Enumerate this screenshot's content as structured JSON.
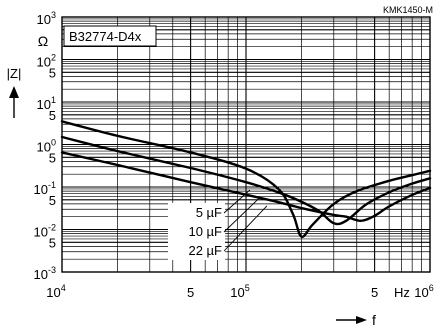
{
  "chart_data": {
    "type": "line",
    "doc_code": "KMK1450-M",
    "box_label": "B32774-D4x",
    "ylabel": "|Z|",
    "yunit": "Ω",
    "xlabel": "f",
    "xunit": "Hz",
    "x_scale": "log",
    "y_scale": "log",
    "xlim": [
      10000,
      1000000
    ],
    "ylim": [
      0.001,
      1000
    ],
    "grid": true,
    "x_ticks": [
      {
        "value": 10000,
        "mantissa": "10",
        "exp": "4"
      },
      {
        "value": 50000,
        "mantissa": "5",
        "exp": ""
      },
      {
        "value": 100000,
        "mantissa": "10",
        "exp": "5"
      },
      {
        "value": 500000,
        "mantissa": "5",
        "exp": ""
      },
      {
        "value": 1000000,
        "mantissa": "10",
        "exp": "6"
      }
    ],
    "y_ticks": [
      {
        "value": 1000,
        "mantissa": "10",
        "exp": "3"
      },
      {
        "value": 100,
        "mantissa": "10",
        "exp": "2"
      },
      {
        "value": 50,
        "mantissa": "5",
        "exp": ""
      },
      {
        "value": 10,
        "mantissa": "10",
        "exp": "1"
      },
      {
        "value": 5,
        "mantissa": "5",
        "exp": ""
      },
      {
        "value": 1,
        "mantissa": "10",
        "exp": "0"
      },
      {
        "value": 0.5,
        "mantissa": "5",
        "exp": ""
      },
      {
        "value": 0.1,
        "mantissa": "10",
        "exp": "-1"
      },
      {
        "value": 0.05,
        "mantissa": "5",
        "exp": ""
      },
      {
        "value": 0.01,
        "mantissa": "10",
        "exp": "-2"
      },
      {
        "value": 0.005,
        "mantissa": "5",
        "exp": ""
      },
      {
        "value": 0.001,
        "mantissa": "10",
        "exp": "-3"
      }
    ],
    "series": [
      {
        "name": "5 µF",
        "label_anchor": [
          105000,
          0.085
        ],
        "points": [
          [
            10000,
            0.65
          ],
          [
            20000,
            0.33
          ],
          [
            50000,
            0.13
          ],
          [
            100000,
            0.066
          ],
          [
            150000,
            0.044
          ],
          [
            200000,
            0.032
          ],
          [
            300000,
            0.022
          ],
          [
            350000,
            0.02
          ],
          [
            420000,
            0.016
          ],
          [
            500000,
            0.021
          ],
          [
            600000,
            0.035
          ],
          [
            800000,
            0.065
          ],
          [
            1000000,
            0.095
          ]
        ]
      },
      {
        "name": "10 µF",
        "label_anchor": [
          118000,
          0.055
        ],
        "points": [
          [
            10000,
            1.5
          ],
          [
            20000,
            0.7
          ],
          [
            50000,
            0.28
          ],
          [
            100000,
            0.13
          ],
          [
            150000,
            0.075
          ],
          [
            200000,
            0.045
          ],
          [
            250000,
            0.027
          ],
          [
            300000,
            0.014
          ],
          [
            350000,
            0.016
          ],
          [
            450000,
            0.039
          ],
          [
            600000,
            0.075
          ],
          [
            800000,
            0.12
          ],
          [
            1000000,
            0.16
          ]
        ]
      },
      {
        "name": "22 µF",
        "label_anchor": [
          130000,
          0.036
        ],
        "points": [
          [
            10000,
            3.5
          ],
          [
            20000,
            1.6
          ],
          [
            50000,
            0.65
          ],
          [
            100000,
            0.27
          ],
          [
            150000,
            0.09
          ],
          [
            180000,
            0.023
          ],
          [
            200000,
            0.0068
          ],
          [
            230000,
            0.013
          ],
          [
            300000,
            0.04
          ],
          [
            400000,
            0.08
          ],
          [
            600000,
            0.14
          ],
          [
            800000,
            0.19
          ],
          [
            1000000,
            0.24
          ]
        ]
      }
    ]
  }
}
